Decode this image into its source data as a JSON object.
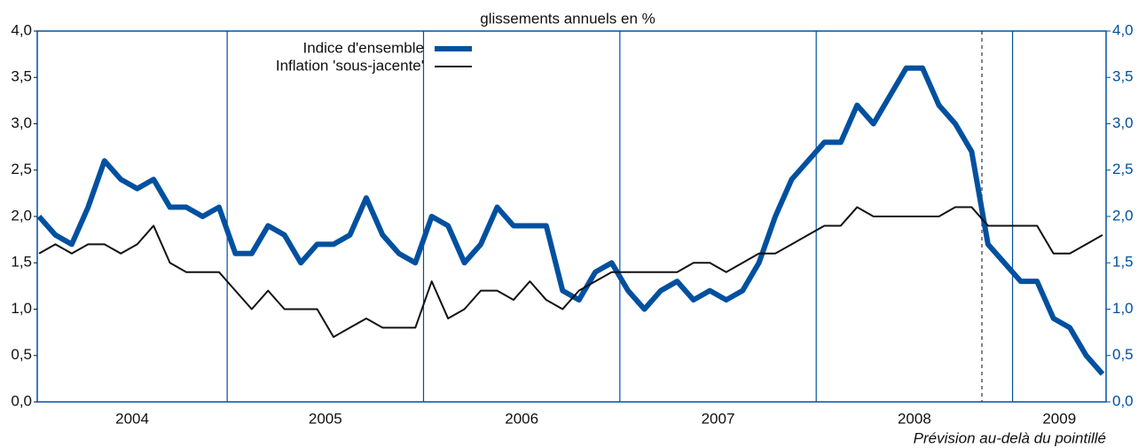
{
  "chart_data": {
    "type": "line",
    "subtitle": "glissements annuels en %",
    "annotation": "Prévision au-delà du pointillé",
    "x_labels": [
      "2004",
      "2005",
      "2006",
      "2007",
      "2008",
      "2009"
    ],
    "series": [
      {
        "name": "Indice d'ensemble",
        "color": "#0050a0",
        "width": 6,
        "values": [
          2.0,
          1.8,
          1.7,
          2.1,
          2.6,
          2.4,
          2.3,
          2.4,
          2.1,
          2.1,
          2.0,
          2.1,
          1.6,
          1.6,
          1.9,
          1.8,
          1.5,
          1.7,
          1.7,
          1.8,
          2.2,
          1.8,
          1.6,
          1.5,
          2.0,
          1.9,
          1.5,
          1.7,
          2.1,
          1.9,
          1.9,
          1.9,
          1.2,
          1.1,
          1.4,
          1.5,
          1.2,
          1.0,
          1.2,
          1.3,
          1.1,
          1.2,
          1.1,
          1.2,
          1.5,
          2.0,
          2.4,
          2.6,
          2.8,
          2.8,
          3.2,
          3.0,
          3.3,
          3.6,
          3.6,
          3.2,
          3.0,
          2.7,
          1.7,
          1.5,
          1.3,
          1.3,
          0.9,
          0.8,
          0.5,
          0.3
        ]
      },
      {
        "name": "Inflation 'sous-jacente'",
        "color": "#111111",
        "width": 2,
        "values": [
          1.6,
          1.7,
          1.6,
          1.7,
          1.7,
          1.6,
          1.7,
          1.9,
          1.5,
          1.4,
          1.4,
          1.4,
          1.2,
          1.0,
          1.2,
          1.0,
          1.0,
          1.0,
          0.7,
          0.8,
          0.9,
          0.8,
          0.8,
          0.8,
          1.3,
          0.9,
          1.0,
          1.2,
          1.2,
          1.1,
          1.3,
          1.1,
          1.0,
          1.2,
          1.3,
          1.4,
          1.4,
          1.4,
          1.4,
          1.4,
          1.5,
          1.5,
          1.4,
          1.5,
          1.6,
          1.6,
          1.7,
          1.8,
          1.9,
          1.9,
          2.1,
          2.0,
          2.0,
          2.0,
          2.0,
          2.0,
          2.1,
          2.1,
          1.9,
          1.9,
          1.9,
          1.9,
          1.6,
          1.6,
          1.7,
          1.8
        ]
      }
    ],
    "ylim": [
      0,
      4
    ],
    "yticks": [
      {
        "value": 0,
        "label": "0,0"
      },
      {
        "value": 0.5,
        "label": "0,5"
      },
      {
        "value": 1,
        "label": "1,0"
      },
      {
        "value": 1.5,
        "label": "1,5"
      },
      {
        "value": 2,
        "label": "2,0"
      },
      {
        "value": 2.5,
        "label": "2,5"
      },
      {
        "value": 3,
        "label": "3,0"
      },
      {
        "value": 3.5,
        "label": "3,5"
      },
      {
        "value": 4,
        "label": "4,0"
      }
    ],
    "y2lim": [
      0,
      4
    ],
    "y2ticks": [
      {
        "value": 0,
        "label": "0,0"
      },
      {
        "value": 0.5,
        "label": "0,5"
      },
      {
        "value": 1,
        "label": "1,0"
      },
      {
        "value": 1.5,
        "label": "1,5"
      },
      {
        "value": 2,
        "label": "2,0"
      },
      {
        "value": 2.5,
        "label": "2,5"
      },
      {
        "value": 3,
        "label": "3,0"
      },
      {
        "value": 3.5,
        "label": "3,5"
      },
      {
        "value": 4,
        "label": "4,0"
      }
    ],
    "y2color": "#0050a0"
  }
}
